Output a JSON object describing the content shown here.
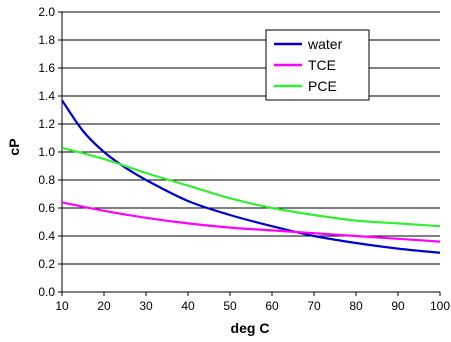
{
  "chart_data": {
    "type": "line",
    "title": "",
    "xlabel": "deg C",
    "ylabel": "cP",
    "xlim": [
      10,
      100
    ],
    "ylim": [
      0.0,
      2.0
    ],
    "x_ticks": [
      10,
      20,
      30,
      40,
      50,
      60,
      70,
      80,
      90,
      100
    ],
    "y_ticks": [
      "0.0",
      "0.2",
      "0.4",
      "0.6",
      "0.8",
      "1.0",
      "1.2",
      "1.4",
      "1.6",
      "1.8",
      "2.0"
    ],
    "grid": "horizontal",
    "legend_position": "top-right",
    "series": [
      {
        "name": "water",
        "color": "#0000CC",
        "x": [
          10,
          15,
          20,
          25,
          30,
          40,
          50,
          60,
          70,
          80,
          90,
          100
        ],
        "values": [
          1.37,
          1.15,
          1.0,
          0.89,
          0.8,
          0.65,
          0.55,
          0.47,
          0.4,
          0.35,
          0.31,
          0.28
        ]
      },
      {
        "name": "TCE",
        "color": "#FF00FF",
        "x": [
          10,
          20,
          30,
          40,
          50,
          60,
          70,
          80,
          90,
          100
        ],
        "values": [
          0.64,
          0.58,
          0.53,
          0.49,
          0.46,
          0.44,
          0.42,
          0.4,
          0.38,
          0.36
        ]
      },
      {
        "name": "PCE",
        "color": "#33EE33",
        "x": [
          10,
          20,
          30,
          40,
          50,
          60,
          70,
          80,
          90,
          100
        ],
        "values": [
          1.03,
          0.95,
          0.85,
          0.76,
          0.67,
          0.6,
          0.55,
          0.51,
          0.49,
          0.47
        ]
      }
    ]
  }
}
